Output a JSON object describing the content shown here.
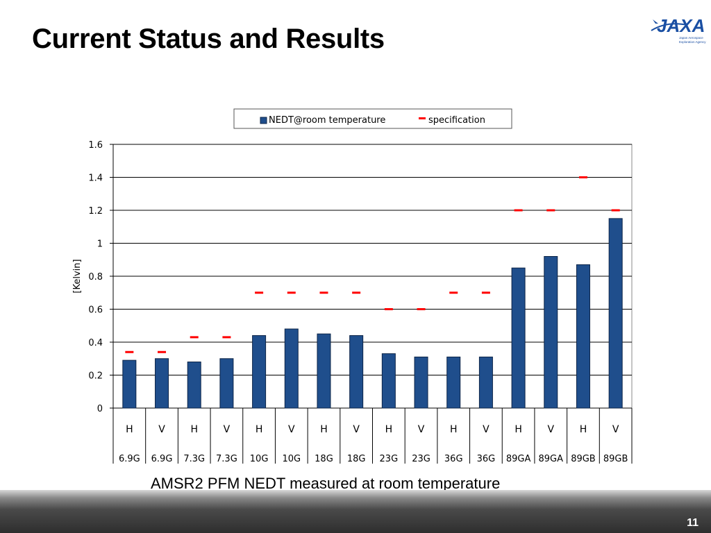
{
  "slide": {
    "title": "Current Status and Results",
    "caption": "AMSR2 PFM NEDT measured at room temperature",
    "page_number": "11"
  },
  "logo": {
    "brand": "JAXA",
    "tagline": "Japan Aerospace Exploration Agency",
    "color": "#1a4fa3"
  },
  "chart_data": {
    "type": "bar",
    "ylabel": "[Kelvin]",
    "ylim": [
      0,
      1.6
    ],
    "yticks": [
      "0",
      "0.2",
      "0.4",
      "0.6",
      "0.8",
      "1",
      "1.2",
      "1.4",
      "1.6"
    ],
    "grid": true,
    "legend": "top",
    "polarizations": [
      "H",
      "V",
      "H",
      "V",
      "H",
      "V",
      "H",
      "V",
      "H",
      "V",
      "H",
      "V",
      "H",
      "V",
      "H",
      "V"
    ],
    "bands": [
      "6.9G",
      "6.9G",
      "7.3G",
      "7.3G",
      "10G",
      "10G",
      "18G",
      "18G",
      "23G",
      "23G",
      "36G",
      "36G",
      "89GA",
      "89GA",
      "89GB",
      "89GB"
    ],
    "series": [
      {
        "name": "NEDT@room temperature",
        "kind": "bar",
        "color": "#1f4e8c",
        "values": [
          0.29,
          0.3,
          0.28,
          0.3,
          0.44,
          0.48,
          0.45,
          0.44,
          0.33,
          0.31,
          0.31,
          0.31,
          0.85,
          0.92,
          0.87,
          1.15
        ]
      },
      {
        "name": "specification",
        "kind": "marker",
        "color": "#ff0000",
        "values": [
          0.34,
          0.34,
          0.43,
          0.43,
          0.7,
          0.7,
          0.7,
          0.7,
          0.6,
          0.6,
          0.7,
          0.7,
          1.2,
          1.2,
          1.4,
          1.2
        ]
      }
    ]
  }
}
